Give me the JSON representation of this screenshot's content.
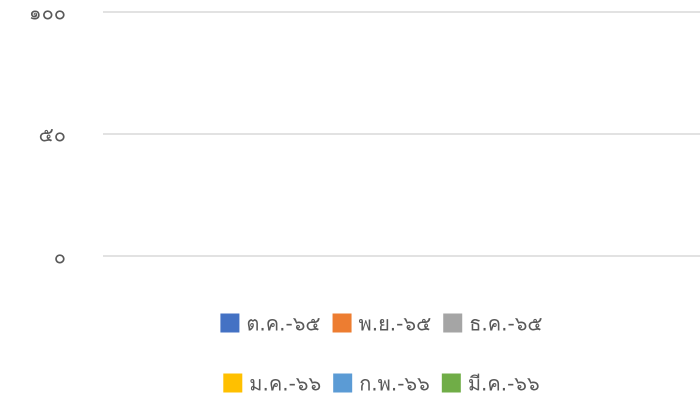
{
  "chart_data": {
    "type": "bar",
    "categories": [],
    "series": [
      {
        "name": "ต.ค.-๖๕",
        "color": "#4472c4",
        "values": []
      },
      {
        "name": "พ.ย.-๖๕",
        "color": "#ed7d31",
        "values": []
      },
      {
        "name": "ธ.ค.-๖๕",
        "color": "#a5a5a5",
        "values": []
      },
      {
        "name": "ม.ค.-๖๖",
        "color": "#ffc000",
        "values": []
      },
      {
        "name": "ก.พ.-๖๖",
        "color": "#5b9bd5",
        "values": []
      },
      {
        "name": "มี.ค.-๖๖",
        "color": "#70ad47",
        "values": []
      }
    ],
    "ylim": [
      0,
      100
    ],
    "yticks": [
      {
        "value": 0,
        "label": "๐"
      },
      {
        "value": 50,
        "label": "๕๐"
      },
      {
        "value": 100,
        "label": "๑๐๐"
      }
    ],
    "grid": true,
    "legend": "bottom"
  }
}
